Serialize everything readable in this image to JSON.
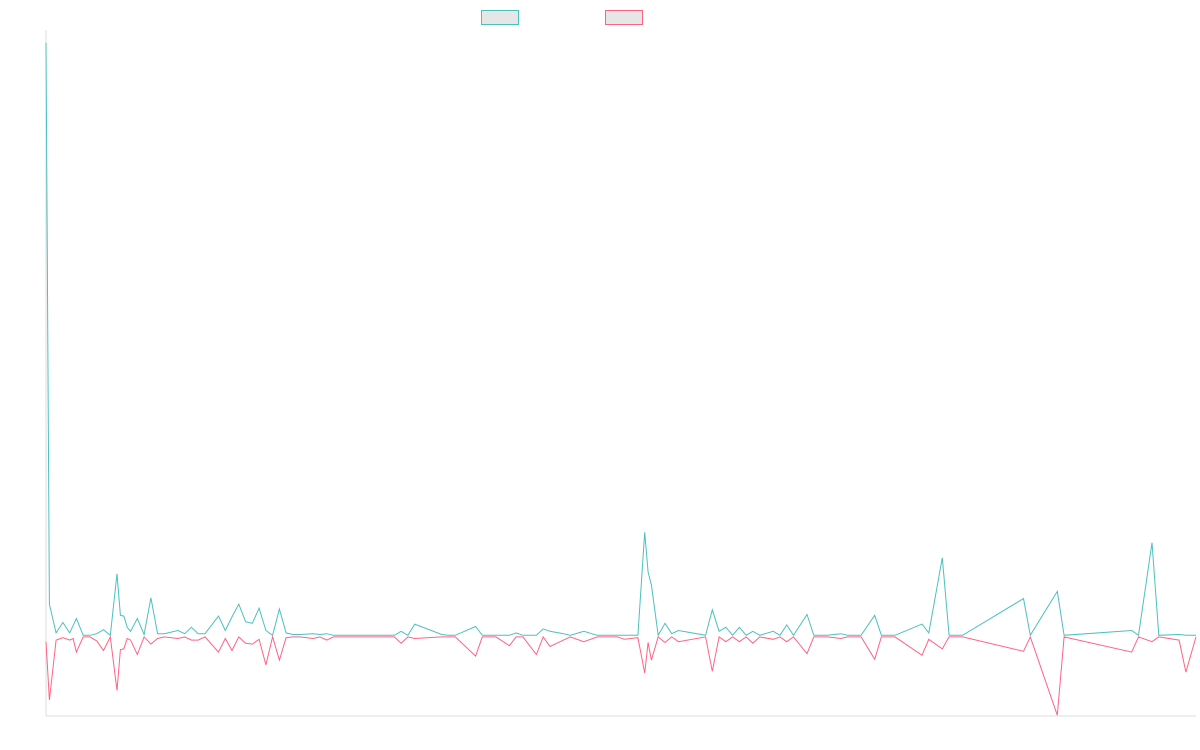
{
  "chart_data": {
    "type": "line",
    "title": "",
    "xlabel": "",
    "ylabel": "",
    "legend_position": "top-center",
    "grid": false,
    "ylim": [
      -100,
      750
    ],
    "series": [
      {
        "color": "#4bc0c0",
        "points": [
          [
            0,
            743
          ],
          [
            1,
            40
          ],
          [
            3,
            4
          ],
          [
            5,
            17
          ],
          [
            7,
            4
          ],
          [
            9,
            22
          ],
          [
            11,
            1
          ],
          [
            13,
            1
          ],
          [
            15,
            3
          ],
          [
            17,
            8
          ],
          [
            19,
            1
          ],
          [
            21,
            78
          ],
          [
            22,
            26
          ],
          [
            23,
            25
          ],
          [
            24,
            11
          ],
          [
            25,
            6
          ],
          [
            27,
            22
          ],
          [
            29,
            2
          ],
          [
            31,
            48
          ],
          [
            33,
            3
          ],
          [
            35,
            3
          ],
          [
            39,
            7
          ],
          [
            41,
            3
          ],
          [
            43,
            11
          ],
          [
            45,
            3
          ],
          [
            47,
            3
          ],
          [
            51,
            25
          ],
          [
            53,
            7
          ],
          [
            55,
            24
          ],
          [
            57,
            40
          ],
          [
            59,
            18
          ],
          [
            61,
            16
          ],
          [
            63,
            35
          ],
          [
            65,
            7
          ],
          [
            67,
            1
          ],
          [
            69,
            34
          ],
          [
            71,
            4
          ],
          [
            73,
            2
          ],
          [
            75,
            2
          ],
          [
            79,
            3
          ],
          [
            81,
            2
          ],
          [
            83,
            3
          ],
          [
            85,
            1
          ],
          [
            87,
            1
          ],
          [
            89,
            1
          ],
          [
            91,
            1
          ],
          [
            103,
            1
          ],
          [
            105,
            6
          ],
          [
            107,
            1
          ],
          [
            109,
            15
          ],
          [
            117,
            2
          ],
          [
            119,
            1
          ],
          [
            121,
            1
          ],
          [
            127,
            12
          ],
          [
            129,
            1
          ],
          [
            133,
            1
          ],
          [
            137,
            1
          ],
          [
            139,
            4
          ],
          [
            141,
            1
          ],
          [
            145,
            1
          ],
          [
            147,
            9
          ],
          [
            149,
            6
          ],
          [
            153,
            3
          ],
          [
            155,
            1
          ],
          [
            159,
            6
          ],
          [
            163,
            1
          ],
          [
            169,
            1
          ],
          [
            171,
            1
          ],
          [
            175,
            1
          ],
          [
            177,
            130
          ],
          [
            178,
            80
          ],
          [
            179,
            64
          ],
          [
            181,
            1
          ],
          [
            183,
            16
          ],
          [
            185,
            3
          ],
          [
            187,
            7
          ],
          [
            195,
            1
          ],
          [
            197,
            33
          ],
          [
            199,
            6
          ],
          [
            201,
            11
          ],
          [
            203,
            1
          ],
          [
            205,
            11
          ],
          [
            207,
            1
          ],
          [
            209,
            6
          ],
          [
            211,
            1
          ],
          [
            215,
            6
          ],
          [
            217,
            1
          ],
          [
            219,
            14
          ],
          [
            221,
            1
          ],
          [
            225,
            27
          ],
          [
            227,
            1
          ],
          [
            229,
            1
          ],
          [
            231,
            1
          ],
          [
            235,
            3
          ],
          [
            237,
            1
          ],
          [
            241,
            1
          ],
          [
            245,
            26
          ],
          [
            247,
            1
          ],
          [
            249,
            1
          ],
          [
            251,
            1
          ],
          [
            259,
            15
          ],
          [
            261,
            4
          ],
          [
            265,
            98
          ],
          [
            267,
            1
          ],
          [
            271,
            1
          ],
          [
            289,
            47
          ],
          [
            291,
            1
          ],
          [
            299,
            56
          ],
          [
            301,
            1
          ],
          [
            321,
            7
          ],
          [
            323,
            1
          ],
          [
            327,
            117
          ],
          [
            329,
            1
          ],
          [
            335,
            2
          ],
          [
            337,
            1
          ],
          [
            340,
            1
          ]
        ]
      },
      {
        "color": "#ff6384",
        "points": [
          [
            0,
            -7
          ],
          [
            1,
            -80
          ],
          [
            3,
            -5
          ],
          [
            5,
            -2
          ],
          [
            7,
            -5
          ],
          [
            8,
            -3
          ],
          [
            9,
            -20
          ],
          [
            11,
            -1
          ],
          [
            13,
            -1
          ],
          [
            15,
            -6
          ],
          [
            17,
            -18
          ],
          [
            19,
            -1
          ],
          [
            21,
            -68
          ],
          [
            22,
            -17
          ],
          [
            23,
            -16
          ],
          [
            24,
            -3
          ],
          [
            25,
            -5
          ],
          [
            27,
            -23
          ],
          [
            29,
            -1
          ],
          [
            31,
            -10
          ],
          [
            33,
            -3
          ],
          [
            35,
            -1
          ],
          [
            39,
            -3
          ],
          [
            41,
            -1
          ],
          [
            43,
            -5
          ],
          [
            45,
            -5
          ],
          [
            47,
            -1
          ],
          [
            51,
            -20
          ],
          [
            53,
            -3
          ],
          [
            55,
            -18
          ],
          [
            57,
            -1
          ],
          [
            59,
            -9
          ],
          [
            61,
            -10
          ],
          [
            63,
            -4
          ],
          [
            65,
            -36
          ],
          [
            67,
            -1
          ],
          [
            69,
            -30
          ],
          [
            71,
            -2
          ],
          [
            73,
            -1
          ],
          [
            75,
            -1
          ],
          [
            79,
            -3
          ],
          [
            81,
            -1
          ],
          [
            83,
            -5
          ],
          [
            85,
            -1
          ],
          [
            87,
            -1
          ],
          [
            89,
            -1
          ],
          [
            91,
            -1
          ],
          [
            103,
            -1
          ],
          [
            105,
            -9
          ],
          [
            107,
            -1
          ],
          [
            109,
            -3
          ],
          [
            117,
            -1
          ],
          [
            119,
            -1
          ],
          [
            121,
            -1
          ],
          [
            127,
            -25
          ],
          [
            129,
            -1
          ],
          [
            133,
            -1
          ],
          [
            137,
            -12
          ],
          [
            139,
            -1
          ],
          [
            141,
            -1
          ],
          [
            145,
            -23
          ],
          [
            147,
            -1
          ],
          [
            149,
            -13
          ],
          [
            153,
            -5
          ],
          [
            155,
            -1
          ],
          [
            159,
            -7
          ],
          [
            163,
            -1
          ],
          [
            169,
            -1
          ],
          [
            171,
            -4
          ],
          [
            175,
            -2
          ],
          [
            177,
            -46
          ],
          [
            178,
            -8
          ],
          [
            179,
            -30
          ],
          [
            181,
            -1
          ],
          [
            183,
            -8
          ],
          [
            185,
            -1
          ],
          [
            187,
            -7
          ],
          [
            195,
            -1
          ],
          [
            197,
            -44
          ],
          [
            199,
            -1
          ],
          [
            201,
            -7
          ],
          [
            203,
            -1
          ],
          [
            205,
            -7
          ],
          [
            207,
            -1
          ],
          [
            209,
            -9
          ],
          [
            211,
            -1
          ],
          [
            215,
            -4
          ],
          [
            217,
            -1
          ],
          [
            219,
            -7
          ],
          [
            221,
            -1
          ],
          [
            225,
            -22
          ],
          [
            227,
            -1
          ],
          [
            229,
            -1
          ],
          [
            231,
            -1
          ],
          [
            235,
            -3
          ],
          [
            237,
            -1
          ],
          [
            241,
            -1
          ],
          [
            245,
            -29
          ],
          [
            247,
            -1
          ],
          [
            249,
            -1
          ],
          [
            251,
            -1
          ],
          [
            259,
            -24
          ],
          [
            261,
            -4
          ],
          [
            265,
            -16
          ],
          [
            267,
            -1
          ],
          [
            271,
            -1
          ],
          [
            289,
            -19
          ],
          [
            291,
            -1
          ],
          [
            299,
            -99
          ],
          [
            301,
            -1
          ],
          [
            321,
            -20
          ],
          [
            323,
            -1
          ],
          [
            327,
            -7
          ],
          [
            329,
            -1
          ],
          [
            335,
            -5
          ],
          [
            337,
            -45
          ],
          [
            340,
            -1
          ]
        ]
      }
    ],
    "xlim": [
      0,
      340
    ]
  }
}
